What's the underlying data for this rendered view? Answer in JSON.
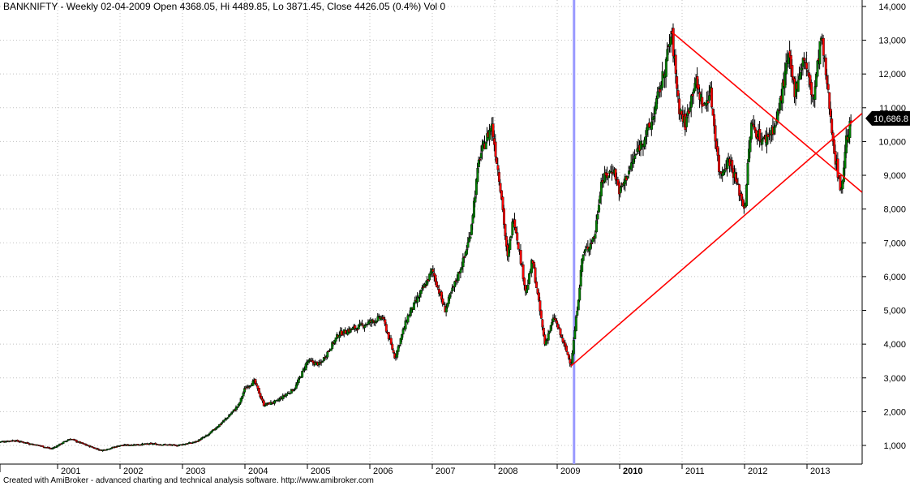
{
  "header": {
    "title": "BANKNIFTY - Weekly 02-04-2009 Open 4368.05, Hi 4489.85, Lo 3871.45, Close 4426.05 (0.4%) Vol 0"
  },
  "footer": {
    "text": "Created with AmiBroker - advanced charting and technical analysis software. http://www.amibroker.com"
  },
  "chart_data": {
    "type": "candlestick",
    "symbol": "BANKNIFTY",
    "interval": "Weekly",
    "ylim": [
      750,
      14100
    ],
    "yticks": [
      1000,
      2000,
      3000,
      4000,
      5000,
      6000,
      7000,
      8000,
      9000,
      10000,
      11000,
      12000,
      13000,
      14000
    ],
    "ytick_labels": [
      "1,000",
      "2,000",
      "3,000",
      "4,000",
      "5,000",
      "6,000",
      "7,000",
      "8,000",
      "9,000",
      "10,000",
      "11,000",
      "12,000",
      "13,000",
      "14,000"
    ],
    "xticks": [
      2001,
      2002,
      2003,
      2004,
      2005,
      2006,
      2007,
      2008,
      2009,
      2010,
      2011,
      2012,
      2013
    ],
    "xtick_labels": [
      "2001",
      "2002",
      "2003",
      "2004",
      "2005",
      "2006",
      "2007",
      "2008",
      "2009",
      "2010",
      "2011",
      "2012",
      "2013"
    ],
    "bold_xtick": "2010",
    "last_price_label": "10,686.8",
    "last_price": 10686.8,
    "selected_date": 2009.27,
    "close_path": [
      [
        2000.03,
        1100
      ],
      [
        2000.3,
        1150
      ],
      [
        2000.7,
        1000
      ],
      [
        2000.9,
        900
      ],
      [
        2001.0,
        1000
      ],
      [
        2001.2,
        1200
      ],
      [
        2001.4,
        1050
      ],
      [
        2001.7,
        850
      ],
      [
        2002.0,
        1000
      ],
      [
        2002.5,
        1050
      ],
      [
        2002.9,
        1000
      ],
      [
        2003.2,
        1100
      ],
      [
        2003.4,
        1300
      ],
      [
        2003.7,
        1800
      ],
      [
        2003.9,
        2200
      ],
      [
        2004.0,
        2700
      ],
      [
        2004.15,
        2900
      ],
      [
        2004.3,
        2200
      ],
      [
        2004.5,
        2300
      ],
      [
        2004.8,
        2700
      ],
      [
        2005.0,
        3500
      ],
      [
        2005.2,
        3400
      ],
      [
        2005.5,
        4300
      ],
      [
        2005.8,
        4500
      ],
      [
        2006.2,
        4800
      ],
      [
        2006.4,
        3600
      ],
      [
        2006.6,
        4800
      ],
      [
        2006.9,
        5800
      ],
      [
        2007.0,
        6200
      ],
      [
        2007.2,
        5000
      ],
      [
        2007.5,
        6500
      ],
      [
        2007.6,
        7200
      ],
      [
        2007.75,
        9500
      ],
      [
        2007.95,
        10500
      ],
      [
        2008.1,
        8500
      ],
      [
        2008.2,
        6500
      ],
      [
        2008.3,
        7800
      ],
      [
        2008.5,
        5500
      ],
      [
        2008.6,
        6500
      ],
      [
        2008.8,
        4000
      ],
      [
        2008.95,
        4800
      ],
      [
        2009.22,
        3400
      ],
      [
        2009.35,
        5600
      ],
      [
        2009.4,
        6600
      ],
      [
        2009.6,
        7200
      ],
      [
        2009.7,
        8800
      ],
      [
        2009.9,
        9200
      ],
      [
        2010.0,
        8500
      ],
      [
        2010.3,
        9800
      ],
      [
        2010.5,
        10500
      ],
      [
        2010.7,
        12000
      ],
      [
        2010.83,
        13200
      ],
      [
        2010.95,
        11000
      ],
      [
        2011.05,
        10500
      ],
      [
        2011.2,
        11800
      ],
      [
        2011.35,
        11000
      ],
      [
        2011.45,
        11500
      ],
      [
        2011.6,
        9000
      ],
      [
        2011.75,
        9500
      ],
      [
        2012.0,
        8000
      ],
      [
        2012.1,
        10500
      ],
      [
        2012.3,
        10000
      ],
      [
        2012.5,
        10500
      ],
      [
        2012.7,
        12500
      ],
      [
        2012.8,
        11500
      ],
      [
        2012.95,
        12500
      ],
      [
        2013.1,
        11200
      ],
      [
        2013.22,
        13100
      ],
      [
        2013.3,
        12000
      ],
      [
        2013.45,
        9500
      ],
      [
        2013.55,
        8500
      ],
      [
        2013.62,
        10000
      ],
      [
        2013.72,
        10686.8
      ]
    ],
    "trendlines": [
      {
        "from": [
          2009.22,
          3350
        ],
        "to": [
          2013.88,
          10830
        ],
        "color": "#ff0000"
      },
      {
        "from": [
          2010.83,
          13250
        ],
        "to": [
          2013.88,
          8500
        ],
        "color": "#ff0000"
      }
    ],
    "colors": {
      "up": "#008000",
      "down": "#ff0000",
      "wick": "#000000",
      "cursor": "#9999ff",
      "grid": "#c0c0c0"
    }
  }
}
